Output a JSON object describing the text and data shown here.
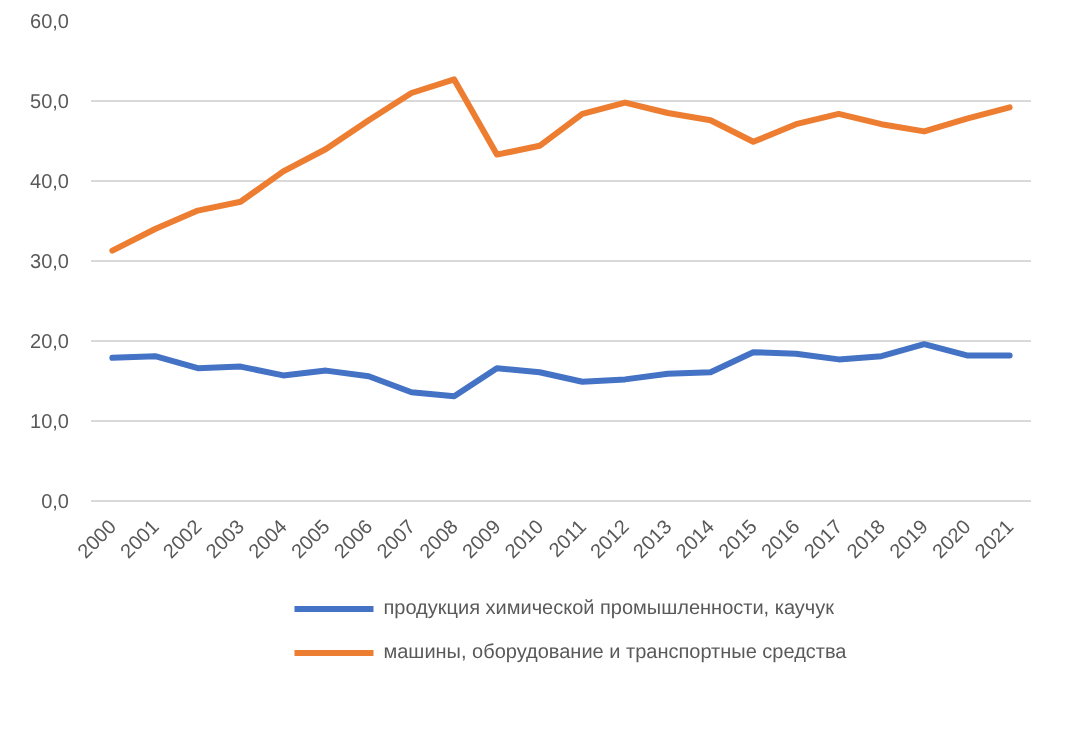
{
  "chart_data": {
    "type": "line",
    "categories": [
      "2000",
      "2001",
      "2002",
      "2003",
      "2004",
      "2005",
      "2006",
      "2007",
      "2008",
      "2009",
      "2010",
      "2011",
      "2012",
      "2013",
      "2014",
      "2015",
      "2016",
      "2017",
      "2018",
      "2019",
      "2020",
      "2021"
    ],
    "series": [
      {
        "name": "продукция химической промышленности, каучук",
        "color": "#4472c4",
        "values": [
          17.9,
          18.1,
          16.6,
          16.8,
          15.7,
          16.3,
          15.6,
          13.6,
          13.1,
          16.6,
          16.1,
          14.9,
          15.2,
          15.9,
          16.1,
          18.6,
          18.4,
          17.7,
          18.1,
          19.6,
          18.2,
          18.2
        ]
      },
      {
        "name": "машины, оборудование и транспортные средства",
        "color": "#ed7d31",
        "values": [
          31.3,
          34.0,
          36.3,
          37.4,
          41.2,
          44.0,
          47.6,
          51.0,
          52.7,
          43.3,
          44.4,
          48.4,
          49.8,
          48.5,
          47.6,
          44.9,
          47.1,
          48.4,
          47.1,
          46.2,
          47.8,
          49.2
        ]
      }
    ],
    "ylim": [
      0,
      60
    ],
    "yticks": [
      {
        "value": 0,
        "label": "0,0"
      },
      {
        "value": 10,
        "label": "10,0"
      },
      {
        "value": 20,
        "label": "20,0"
      },
      {
        "value": 30,
        "label": "30,0"
      },
      {
        "value": 40,
        "label": "40,0"
      },
      {
        "value": 50,
        "label": "50,0"
      },
      {
        "value": 60,
        "label": "60,0"
      }
    ],
    "grid": "y",
    "legend": "bottom",
    "marker": "none",
    "line_style": "solid"
  }
}
